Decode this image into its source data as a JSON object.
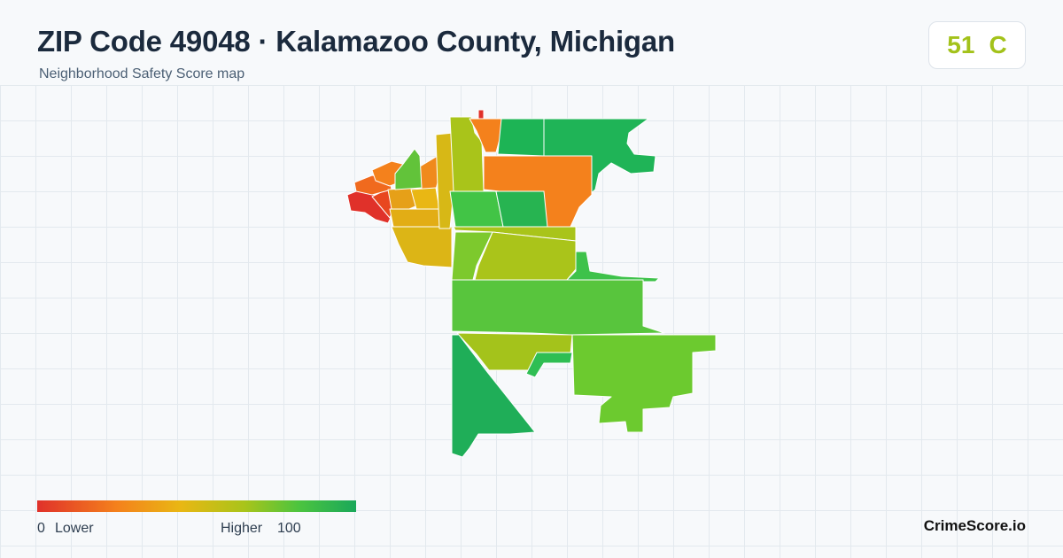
{
  "header": {
    "title": "ZIP Code 49048 · Kalamazoo County, Michigan",
    "subtitle": "Neighborhood Safety Score map"
  },
  "score": {
    "value": "51",
    "grade": "C",
    "color": "#a3c21a"
  },
  "legend": {
    "min_value": "0",
    "min_label": "Lower",
    "max_label": "Higher",
    "max_value": "100",
    "color_low": "#e0312a",
    "color_high": "#1aa85a"
  },
  "brand": "CrimeScore.io",
  "map": {
    "color_scale": [
      "#e0312a",
      "#f4811c",
      "#e9b714",
      "#a9c41a",
      "#4cc43f",
      "#1aa85a"
    ]
  }
}
